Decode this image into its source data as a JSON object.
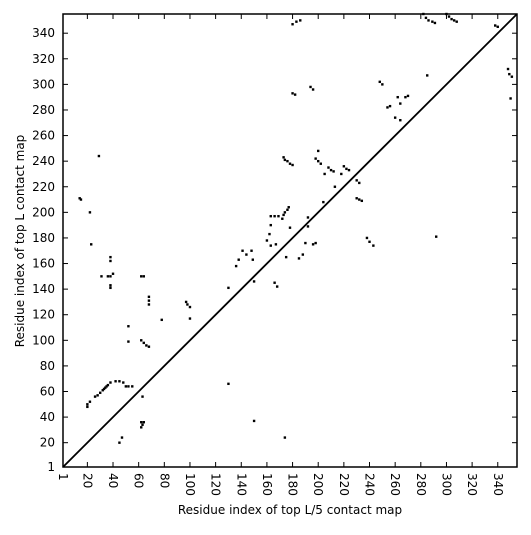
{
  "chart_data": {
    "type": "scatter",
    "x_label": "Residue index of top L/5 contact map",
    "y_label": "Residue index of top L contact map",
    "xlim": [
      1,
      355
    ],
    "ylim": [
      1,
      355
    ],
    "xticks": [
      1,
      20,
      40,
      60,
      80,
      100,
      120,
      140,
      160,
      180,
      200,
      220,
      240,
      260,
      280,
      300,
      320,
      340
    ],
    "yticks": [
      1,
      20,
      40,
      60,
      80,
      100,
      120,
      140,
      160,
      180,
      200,
      220,
      240,
      260,
      280,
      300,
      320,
      340
    ],
    "color": "#000000",
    "diagonal": true,
    "x": [
      14,
      15,
      22,
      23,
      29,
      30,
      32,
      34,
      36,
      38,
      33,
      35,
      20,
      20,
      22,
      26,
      28,
      38,
      40,
      36,
      31,
      38,
      38,
      38,
      38,
      42,
      45,
      48,
      50,
      52,
      55,
      52,
      52,
      62,
      64,
      62,
      64,
      66,
      68,
      68,
      68,
      68,
      62,
      64,
      63,
      62,
      63,
      45,
      47,
      78,
      97,
      98,
      100,
      100,
      130,
      130,
      136,
      138,
      141,
      144,
      148,
      149,
      150,
      150,
      160,
      162,
      163,
      163,
      166,
      169,
      163,
      167,
      166,
      168,
      172,
      173,
      174,
      176,
      177,
      175,
      178,
      173,
      174,
      176,
      178,
      180,
      174,
      180,
      182,
      180,
      183,
      186,
      185,
      188,
      190,
      192,
      192,
      196,
      194,
      196,
      198,
      198,
      200,
      202,
      200,
      204,
      205,
      208,
      210,
      212,
      213,
      218,
      220,
      222,
      224,
      230,
      232,
      230,
      232,
      234,
      238,
      240,
      243,
      248,
      250,
      254,
      256,
      260,
      262,
      264,
      268,
      270,
      264,
      282,
      284,
      286,
      289,
      291,
      285,
      300,
      302,
      304,
      306,
      308,
      292,
      338,
      340,
      348,
      349,
      351,
      350
    ],
    "values": [
      211,
      210,
      200,
      175,
      244,
      59,
      61,
      63,
      65,
      67,
      62,
      64,
      48,
      50,
      52,
      56,
      57,
      150,
      152,
      150,
      150,
      165,
      162,
      143,
      141,
      68,
      68,
      67,
      64,
      64,
      64,
      111,
      99,
      150,
      150,
      100,
      98,
      96,
      95,
      134,
      131,
      128,
      36,
      36,
      34,
      32,
      56,
      20,
      24,
      116,
      130,
      128,
      126,
      117,
      141,
      66,
      158,
      163,
      170,
      167,
      170,
      163,
      146,
      37,
      178,
      183,
      190,
      197,
      197,
      197,
      174,
      175,
      145,
      142,
      195,
      198,
      200,
      202,
      204,
      165,
      188,
      243,
      241,
      240,
      238,
      237,
      24,
      293,
      292,
      347,
      349,
      350,
      164,
      167,
      176,
      189,
      196,
      296,
      298,
      175,
      176,
      242,
      240,
      238,
      248,
      208,
      230,
      235,
      233,
      232,
      220,
      230,
      236,
      234,
      233,
      225,
      223,
      211,
      210,
      209,
      180,
      177,
      174,
      302,
      300,
      282,
      283,
      274,
      290,
      285,
      290,
      291,
      272,
      355,
      352,
      350,
      349,
      348,
      307,
      355,
      353,
      351,
      350,
      349,
      181,
      346,
      345,
      312,
      308,
      306,
      289
    ]
  }
}
